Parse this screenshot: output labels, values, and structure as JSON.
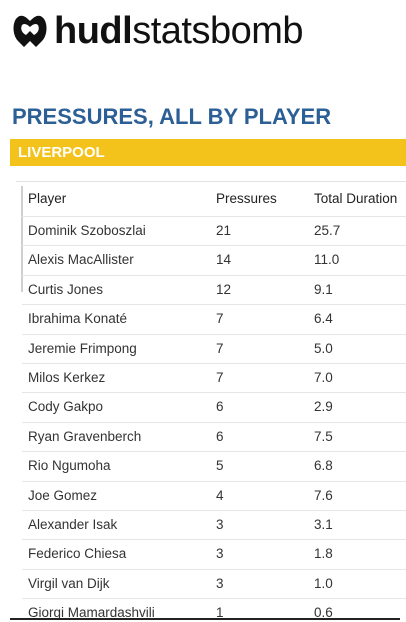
{
  "header": {
    "brand_bold": "hudl",
    "brand_regular": "statsbomb"
  },
  "title": "PRESSURES, ALL BY PLAYER",
  "team": "LIVERPOOL",
  "table": {
    "columns": [
      "Player",
      "Pressures",
      "Total Duration"
    ],
    "rows": [
      [
        "Dominik Szoboszlai",
        "21",
        "25.7"
      ],
      [
        "Alexis MacAllister",
        "14",
        "11.0"
      ],
      [
        "Curtis Jones",
        "12",
        "9.1"
      ],
      [
        "Ibrahima Konaté",
        "7",
        "6.4"
      ],
      [
        "Jeremie Frimpong",
        "7",
        "5.0"
      ],
      [
        "Milos Kerkez",
        "7",
        "7.0"
      ],
      [
        "Cody Gakpo",
        "6",
        "2.9"
      ],
      [
        "Ryan Gravenberch",
        "6",
        "7.5"
      ],
      [
        "Rio Ngumoha",
        "5",
        "6.8"
      ],
      [
        "Joe Gomez",
        "4",
        "7.6"
      ],
      [
        "Alexander Isak",
        "3",
        "3.1"
      ],
      [
        "Federico Chiesa",
        "3",
        "1.8"
      ],
      [
        "Virgil van Dijk",
        "3",
        "1.0"
      ],
      [
        "Giorgi Mamardashvili",
        "1",
        "0.6"
      ]
    ]
  }
}
